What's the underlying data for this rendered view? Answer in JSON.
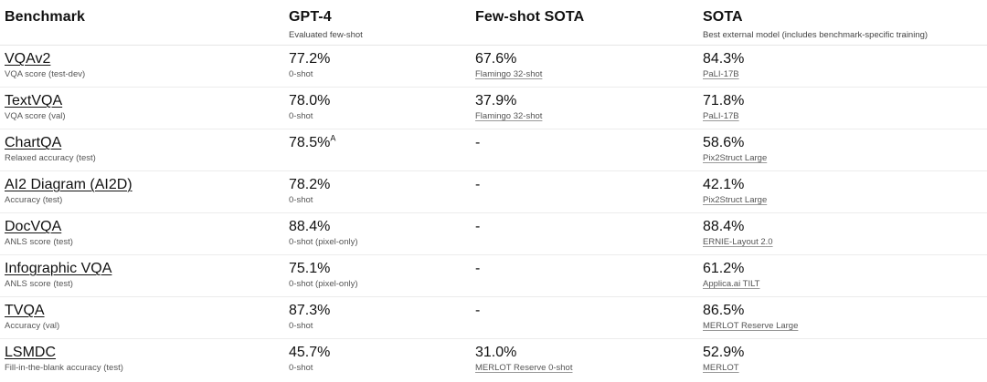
{
  "header": {
    "benchmark": "Benchmark",
    "gpt4": {
      "title": "GPT-4",
      "subtitle": "Evaluated few-shot"
    },
    "fewshot": {
      "title": "Few-shot SOTA",
      "subtitle": ""
    },
    "sota": {
      "title": "SOTA",
      "subtitle": "Best external model (includes benchmark-specific training)"
    }
  },
  "rows": [
    {
      "name": "VQAv2",
      "metric": "VQA score (test-dev)",
      "gpt4": "77.2%",
      "gpt4_sup": "",
      "gpt4_note": "0-shot",
      "fewshot": "67.6%",
      "fewshot_note": "Flamingo 32-shot",
      "sota": "84.3%",
      "sota_note": "PaLI-17B"
    },
    {
      "name": "TextVQA",
      "metric": "VQA score (val)",
      "gpt4": "78.0%",
      "gpt4_sup": "",
      "gpt4_note": "0-shot",
      "fewshot": "37.9%",
      "fewshot_note": "Flamingo 32-shot",
      "sota": "71.8%",
      "sota_note": "PaLI-17B"
    },
    {
      "name": "ChartQA",
      "metric": "Relaxed accuracy (test)",
      "gpt4": "78.5%",
      "gpt4_sup": "A",
      "gpt4_note": "",
      "fewshot": "-",
      "fewshot_note": "",
      "sota": "58.6%",
      "sota_note": "Pix2Struct Large"
    },
    {
      "name": "AI2 Diagram (AI2D)",
      "metric": "Accuracy (test)",
      "gpt4": "78.2%",
      "gpt4_sup": "",
      "gpt4_note": "0-shot",
      "fewshot": "-",
      "fewshot_note": "",
      "sota": "42.1%",
      "sota_note": "Pix2Struct Large"
    },
    {
      "name": "DocVQA",
      "metric": "ANLS score (test)",
      "gpt4": "88.4%",
      "gpt4_sup": "",
      "gpt4_note": "0-shot (pixel-only)",
      "fewshot": "-",
      "fewshot_note": "",
      "sota": "88.4%",
      "sota_note": "ERNIE-Layout 2.0"
    },
    {
      "name": "Infographic VQA",
      "metric": "ANLS score (test)",
      "gpt4": "75.1%",
      "gpt4_sup": "",
      "gpt4_note": "0-shot (pixel-only)",
      "fewshot": "-",
      "fewshot_note": "",
      "sota": "61.2%",
      "sota_note": "Applica.ai TILT"
    },
    {
      "name": "TVQA",
      "metric": "Accuracy (val)",
      "gpt4": "87.3%",
      "gpt4_sup": "",
      "gpt4_note": "0-shot",
      "fewshot": "-",
      "fewshot_note": "",
      "sota": "86.5%",
      "sota_note": "MERLOT Reserve Large"
    },
    {
      "name": "LSMDC",
      "metric": "Fill-in-the-blank accuracy (test)",
      "gpt4": "45.7%",
      "gpt4_sup": "",
      "gpt4_note": "0-shot",
      "fewshot": "31.0%",
      "fewshot_note": "MERLOT Reserve 0-shot",
      "sota": "52.9%",
      "sota_note": "MERLOT"
    }
  ]
}
